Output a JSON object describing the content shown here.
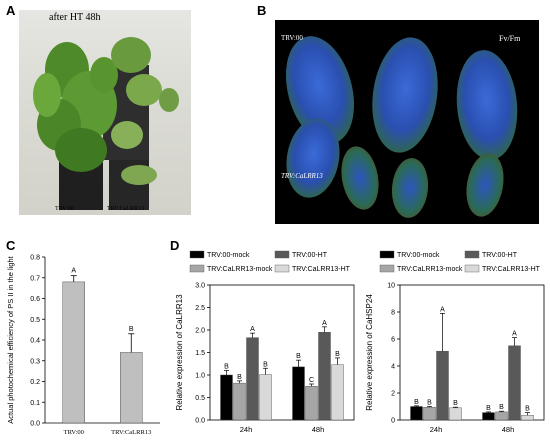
{
  "panels": {
    "a_letter": "A",
    "b_letter": "B",
    "c_letter": "C",
    "d_letter": "D"
  },
  "photo_a": {
    "caption": "after HT 48h",
    "label_left": "TRV:00",
    "label_right": "TRV:CaLRR13"
  },
  "photo_b": {
    "label_top": "TRV:00",
    "label_bottom": "TRV:CaLRR13",
    "label_metric": "Fv/Fm"
  },
  "chart_data": [
    {
      "type": "bar",
      "panel": "C",
      "categories": [
        "TRV:00",
        "TRV:CaLRR13"
      ],
      "values": [
        0.68,
        0.34
      ],
      "errors": [
        0.03,
        0.09
      ],
      "letters": [
        "A",
        "B"
      ],
      "ylabel": "Actual photochemical efficiency of PS II in the light",
      "ylim": [
        0.0,
        0.8
      ],
      "yticks": [
        "0.0",
        "0.1",
        "0.2",
        "0.3",
        "0.4",
        "0.5",
        "0.6",
        "0.7",
        "0.8"
      ],
      "grid": false,
      "color": "#bfbfbf"
    },
    {
      "type": "bar",
      "panel": "D-left",
      "ylabel": "Relative expression of CaLRR13",
      "categories": [
        "24h",
        "48h"
      ],
      "ylim": [
        0.0,
        3.0
      ],
      "yticks": [
        "0.0",
        "0.5",
        "1.0",
        "1.5",
        "2.0",
        "2.5",
        "3.0"
      ],
      "legend": [
        "TRV:00-mock",
        "TRV:00-HT",
        "TRV:CaLRR13-mock",
        "TRV:CaLRR13-HT"
      ],
      "legend_placement": "top",
      "series": [
        {
          "name": "TRV:00-mock",
          "color": "#000000",
          "values": [
            1.0,
            1.18
          ],
          "errors": [
            0.1,
            0.15
          ],
          "letters": [
            "B",
            "B"
          ]
        },
        {
          "name": "TRV:CaLRR13-mock",
          "color": "#a6a6a6",
          "values": [
            0.82,
            0.75
          ],
          "errors": [
            0.05,
            0.05
          ],
          "letters": [
            "B",
            "C"
          ]
        },
        {
          "name": "TRV:00-HT",
          "color": "#595959",
          "values": [
            1.83,
            1.95
          ],
          "errors": [
            0.1,
            0.12
          ],
          "letters": [
            "A",
            "A"
          ]
        },
        {
          "name": "TRV:CaLRR13-HT",
          "color": "#d9d9d9",
          "values": [
            1.01,
            1.23
          ],
          "errors": [
            0.14,
            0.15
          ],
          "letters": [
            "B",
            "B"
          ]
        }
      ]
    },
    {
      "type": "bar",
      "panel": "D-right",
      "ylabel": "Relative expression of CaHSP24",
      "categories": [
        "24h",
        "48h"
      ],
      "ylim": [
        0,
        10
      ],
      "yticks": [
        "0",
        "2",
        "4",
        "6",
        "8",
        "10"
      ],
      "legend": [
        "TRV:00-mock",
        "TRV:00-HT",
        "TRV:CaLRR13-mock",
        "TRV:CaLRR13-HT"
      ],
      "legend_placement": "top",
      "series": [
        {
          "name": "TRV:00-mock",
          "color": "#000000",
          "values": [
            1.0,
            0.55
          ],
          "errors": [
            0.05,
            0.05
          ],
          "letters": [
            "B",
            "B"
          ]
        },
        {
          "name": "TRV:CaLRR13-mock",
          "color": "#a6a6a6",
          "values": [
            0.95,
            0.6
          ],
          "errors": [
            0.05,
            0.05
          ],
          "letters": [
            "B",
            "B"
          ]
        },
        {
          "name": "TRV:00-HT",
          "color": "#595959",
          "values": [
            5.1,
            5.5
          ],
          "errors": [
            2.8,
            0.6
          ],
          "letters": [
            "A",
            "A"
          ]
        },
        {
          "name": "TRV:CaLRR13-HT",
          "color": "#d9d9d9",
          "values": [
            0.9,
            0.35
          ],
          "errors": [
            0.05,
            0.2
          ],
          "letters": [
            "B",
            "B"
          ]
        }
      ]
    }
  ]
}
